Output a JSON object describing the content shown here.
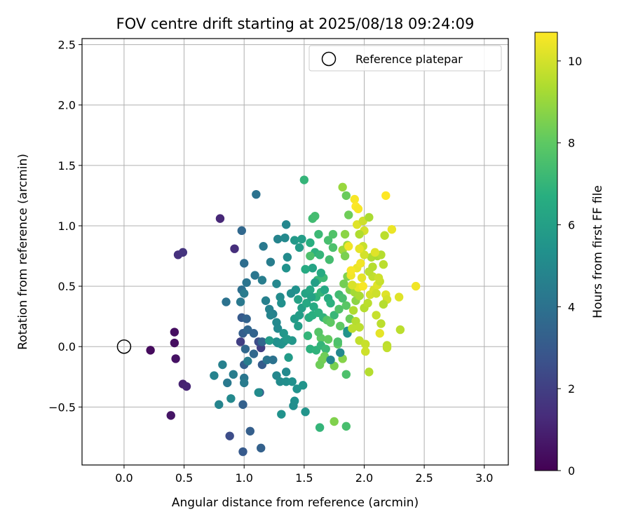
{
  "chart_data": {
    "type": "scatter",
    "title": "FOV centre drift starting at 2025/08/18 09:24:09",
    "xlabel": "Angular distance from reference (arcmin)",
    "ylabel": "Rotation from reference (arcmin)",
    "xlim": [
      -0.35,
      3.2
    ],
    "ylim": [
      -0.98,
      2.55
    ],
    "xticks": [
      0.0,
      0.5,
      1.0,
      1.5,
      2.0,
      2.5,
      3.0
    ],
    "xtick_labels": [
      "0.0",
      "0.5",
      "1.0",
      "1.5",
      "2.0",
      "2.5",
      "3.0"
    ],
    "yticks": [
      -0.5,
      0.0,
      0.5,
      1.0,
      1.5,
      2.0,
      2.5
    ],
    "ytick_labels": [
      "−0.5",
      "0.0",
      "0.5",
      "1.0",
      "1.5",
      "2.0",
      "2.5"
    ],
    "grid": true,
    "legend": {
      "location": "top-right",
      "entries": [
        "Reference platepar"
      ]
    },
    "reference_point": {
      "x": 0.0,
      "y": 0.0,
      "marker": "hollow circle"
    },
    "colorbar": {
      "label": "Hours from first FF file",
      "range": [
        0,
        10.7
      ],
      "ticks": [
        0,
        2,
        4,
        6,
        8,
        10
      ],
      "tick_labels": [
        "0",
        "2",
        "4",
        "6",
        "8",
        "10"
      ],
      "colormap": "viridis"
    },
    "points": [
      {
        "x": 0.22,
        "y": -0.03,
        "c": 0.3
      },
      {
        "x": 0.42,
        "y": 0.12,
        "c": 0.4
      },
      {
        "x": 0.42,
        "y": 0.03,
        "c": 0.4
      },
      {
        "x": 0.43,
        "y": -0.1,
        "c": 0.5
      },
      {
        "x": 0.39,
        "y": -0.57,
        "c": 0.6
      },
      {
        "x": 0.49,
        "y": -0.31,
        "c": 1.0
      },
      {
        "x": 0.52,
        "y": -0.33,
        "c": 1.1
      },
      {
        "x": 0.45,
        "y": 0.76,
        "c": 1.5
      },
      {
        "x": 0.49,
        "y": 0.78,
        "c": 1.6
      },
      {
        "x": 0.8,
        "y": 1.06,
        "c": 1.2
      },
      {
        "x": 0.92,
        "y": 0.81,
        "c": 1.4
      },
      {
        "x": 0.97,
        "y": 0.04,
        "c": 2.0
      },
      {
        "x": 1.14,
        "y": -0.01,
        "c": 2.0
      },
      {
        "x": 1.12,
        "y": 0.04,
        "c": 2.5
      },
      {
        "x": 0.88,
        "y": -0.74,
        "c": 2.5
      },
      {
        "x": 0.99,
        "y": -0.87,
        "c": 3.0
      },
      {
        "x": 1.05,
        "y": -0.7,
        "c": 3.2
      },
      {
        "x": 1.14,
        "y": -0.84,
        "c": 3.3
      },
      {
        "x": 1.13,
        "y": -0.38,
        "c": 3.0
      },
      {
        "x": 1.15,
        "y": -0.15,
        "c": 3.1
      },
      {
        "x": 0.99,
        "y": -0.48,
        "c": 3.3
      },
      {
        "x": 1.0,
        "y": -0.15,
        "c": 3.2
      },
      {
        "x": 0.98,
        "y": 0.24,
        "c": 3.0
      },
      {
        "x": 0.99,
        "y": 0.11,
        "c": 3.2
      },
      {
        "x": 1.02,
        "y": 0.23,
        "c": 3.4
      },
      {
        "x": 1.03,
        "y": 0.14,
        "c": 3.5
      },
      {
        "x": 1.01,
        "y": -0.02,
        "c": 3.6
      },
      {
        "x": 1.08,
        "y": 0.11,
        "c": 3.4
      },
      {
        "x": 1.08,
        "y": -0.06,
        "c": 3.6
      },
      {
        "x": 1.15,
        "y": 0.04,
        "c": 3.5
      },
      {
        "x": 1.1,
        "y": 1.26,
        "c": 4.0
      },
      {
        "x": 0.98,
        "y": 0.96,
        "c": 3.6
      },
      {
        "x": 1.0,
        "y": 0.69,
        "c": 3.8
      },
      {
        "x": 0.98,
        "y": 0.47,
        "c": 3.9
      },
      {
        "x": 1.02,
        "y": 0.53,
        "c": 4.1
      },
      {
        "x": 1.09,
        "y": 0.59,
        "c": 4.2
      },
      {
        "x": 0.85,
        "y": 0.37,
        "c": 4.0
      },
      {
        "x": 0.97,
        "y": 0.37,
        "c": 4.3
      },
      {
        "x": 1.0,
        "y": 0.44,
        "c": 4.4
      },
      {
        "x": 1.16,
        "y": 0.83,
        "c": 4.3
      },
      {
        "x": 1.15,
        "y": 0.55,
        "c": 4.5
      },
      {
        "x": 1.22,
        "y": 0.7,
        "c": 4.5
      },
      {
        "x": 1.18,
        "y": 0.38,
        "c": 4.6
      },
      {
        "x": 1.21,
        "y": 0.31,
        "c": 4.7
      },
      {
        "x": 1.24,
        "y": 0.27,
        "c": 4.6
      },
      {
        "x": 1.22,
        "y": 0.26,
        "c": 4.8
      },
      {
        "x": 1.27,
        "y": 0.52,
        "c": 4.9
      },
      {
        "x": 1.27,
        "y": 0.2,
        "c": 5.0
      },
      {
        "x": 1.28,
        "y": 0.89,
        "c": 4.8
      },
      {
        "x": 1.35,
        "y": 1.01,
        "c": 4.9
      },
      {
        "x": 1.34,
        "y": 0.9,
        "c": 5.0
      },
      {
        "x": 1.36,
        "y": 0.74,
        "c": 5.1
      },
      {
        "x": 1.35,
        "y": 0.65,
        "c": 5.4
      },
      {
        "x": 1.42,
        "y": 0.88,
        "c": 5.7
      },
      {
        "x": 1.46,
        "y": 0.82,
        "c": 5.8
      },
      {
        "x": 1.48,
        "y": 0.89,
        "c": 5.9
      },
      {
        "x": 1.43,
        "y": 0.47,
        "c": 5.4
      },
      {
        "x": 1.39,
        "y": 0.44,
        "c": 5.2
      },
      {
        "x": 1.3,
        "y": 0.41,
        "c": 5.1
      },
      {
        "x": 1.31,
        "y": 0.36,
        "c": 5.3
      },
      {
        "x": 1.28,
        "y": 0.15,
        "c": 5.0
      },
      {
        "x": 1.27,
        "y": 0.04,
        "c": 5.2
      },
      {
        "x": 1.28,
        "y": 0.03,
        "c": 5.3
      },
      {
        "x": 1.31,
        "y": 0.02,
        "c": 5.4
      },
      {
        "x": 1.33,
        "y": 0.04,
        "c": 5.5
      },
      {
        "x": 1.33,
        "y": 0.11,
        "c": 5.6
      },
      {
        "x": 1.4,
        "y": 0.05,
        "c": 5.6
      },
      {
        "x": 1.21,
        "y": 0.05,
        "c": 5.8
      },
      {
        "x": 1.24,
        "y": -0.11,
        "c": 4.0
      },
      {
        "x": 1.19,
        "y": -0.11,
        "c": 4.1
      },
      {
        "x": 1.03,
        "y": -0.12,
        "c": 4.5
      },
      {
        "x": 1.0,
        "y": -0.26,
        "c": 4.2
      },
      {
        "x": 1.0,
        "y": -0.3,
        "c": 4.4
      },
      {
        "x": 0.91,
        "y": -0.23,
        "c": 4.5
      },
      {
        "x": 0.86,
        "y": -0.3,
        "c": 4.3
      },
      {
        "x": 0.82,
        "y": -0.15,
        "c": 4.6
      },
      {
        "x": 0.75,
        "y": -0.24,
        "c": 4.7
      },
      {
        "x": 0.79,
        "y": -0.48,
        "c": 4.8
      },
      {
        "x": 0.89,
        "y": -0.43,
        "c": 5.0
      },
      {
        "x": 1.12,
        "y": -0.38,
        "c": 5.1
      },
      {
        "x": 1.27,
        "y": -0.24,
        "c": 4.9
      },
      {
        "x": 1.3,
        "y": -0.29,
        "c": 5.1
      },
      {
        "x": 1.35,
        "y": -0.21,
        "c": 5.0
      },
      {
        "x": 1.35,
        "y": -0.29,
        "c": 5.2
      },
      {
        "x": 1.4,
        "y": -0.29,
        "c": 5.3
      },
      {
        "x": 1.44,
        "y": -0.35,
        "c": 5.4
      },
      {
        "x": 1.49,
        "y": -0.32,
        "c": 5.5
      },
      {
        "x": 1.42,
        "y": -0.45,
        "c": 5.3
      },
      {
        "x": 1.41,
        "y": -0.49,
        "c": 5.2
      },
      {
        "x": 1.31,
        "y": -0.56,
        "c": 5.4
      },
      {
        "x": 1.51,
        "y": -0.54,
        "c": 5.5
      },
      {
        "x": 1.36,
        "y": 0.06,
        "c": 5.7
      },
      {
        "x": 1.37,
        "y": -0.09,
        "c": 5.8
      },
      {
        "x": 1.45,
        "y": 0.17,
        "c": 5.9
      },
      {
        "x": 1.42,
        "y": 0.23,
        "c": 5.8
      },
      {
        "x": 1.46,
        "y": 0.26,
        "c": 5.9
      },
      {
        "x": 1.48,
        "y": 0.32,
        "c": 6.0
      },
      {
        "x": 1.45,
        "y": 0.39,
        "c": 6.1
      },
      {
        "x": 1.51,
        "y": 0.44,
        "c": 6.2
      },
      {
        "x": 1.55,
        "y": 0.47,
        "c": 6.3
      },
      {
        "x": 1.52,
        "y": 0.36,
        "c": 6.4
      },
      {
        "x": 1.58,
        "y": 0.33,
        "c": 6.5
      },
      {
        "x": 1.54,
        "y": 0.24,
        "c": 6.6
      },
      {
        "x": 1.57,
        "y": 0.26,
        "c": 6.7
      },
      {
        "x": 1.62,
        "y": 0.28,
        "c": 6.8
      },
      {
        "x": 1.66,
        "y": 0.24,
        "c": 6.9
      },
      {
        "x": 1.6,
        "y": 0.41,
        "c": 6.9
      },
      {
        "x": 1.64,
        "y": 0.45,
        "c": 7.0
      },
      {
        "x": 1.61,
        "y": 0.55,
        "c": 7.1
      },
      {
        "x": 1.66,
        "y": 0.57,
        "c": 7.2
      },
      {
        "x": 1.64,
        "y": 0.61,
        "c": 6.5
      },
      {
        "x": 1.57,
        "y": 0.65,
        "c": 6.2
      },
      {
        "x": 1.51,
        "y": 0.64,
        "c": 6.5
      },
      {
        "x": 1.55,
        "y": 0.86,
        "c": 6.7
      },
      {
        "x": 1.59,
        "y": 0.78,
        "c": 6.8
      },
      {
        "x": 1.63,
        "y": 0.76,
        "c": 7.0
      },
      {
        "x": 1.62,
        "y": 0.93,
        "c": 7.2
      },
      {
        "x": 1.71,
        "y": 0.72,
        "c": 7.4
      },
      {
        "x": 1.7,
        "y": 0.88,
        "c": 7.5
      },
      {
        "x": 1.74,
        "y": 0.82,
        "c": 7.6
      },
      {
        "x": 1.74,
        "y": 0.93,
        "c": 7.7
      },
      {
        "x": 1.57,
        "y": 1.06,
        "c": 7.3
      },
      {
        "x": 1.59,
        "y": 1.08,
        "c": 7.4
      },
      {
        "x": 1.5,
        "y": 1.38,
        "c": 7.0
      },
      {
        "x": 1.55,
        "y": 0.75,
        "c": 7.6
      },
      {
        "x": 1.59,
        "y": 0.53,
        "c": 6.0
      },
      {
        "x": 1.56,
        "y": 0.41,
        "c": 6.1
      },
      {
        "x": 1.67,
        "y": 0.47,
        "c": 6.4
      },
      {
        "x": 1.7,
        "y": 0.4,
        "c": 6.6
      },
      {
        "x": 1.72,
        "y": 0.36,
        "c": 6.8
      },
      {
        "x": 1.75,
        "y": 0.26,
        "c": 7.1
      },
      {
        "x": 1.79,
        "y": 0.43,
        "c": 7.3
      },
      {
        "x": 1.82,
        "y": 0.4,
        "c": 7.5
      },
      {
        "x": 1.79,
        "y": 0.31,
        "c": 7.7
      },
      {
        "x": 1.85,
        "y": 0.34,
        "c": 7.9
      },
      {
        "x": 1.69,
        "y": 0.22,
        "c": 7.8
      },
      {
        "x": 1.72,
        "y": 0.2,
        "c": 8.0
      },
      {
        "x": 1.8,
        "y": 0.17,
        "c": 8.0
      },
      {
        "x": 1.88,
        "y": 0.23,
        "c": 8.2
      },
      {
        "x": 1.86,
        "y": 0.13,
        "c": 5.4
      },
      {
        "x": 1.86,
        "y": 0.11,
        "c": 5.5
      },
      {
        "x": 1.64,
        "y": 0.07,
        "c": 8.0
      },
      {
        "x": 1.7,
        "y": 0.06,
        "c": 8.1
      },
      {
        "x": 1.62,
        "y": 0.12,
        "c": 7.8
      },
      {
        "x": 1.53,
        "y": 0.09,
        "c": 7.0
      },
      {
        "x": 1.55,
        "y": -0.02,
        "c": 6.8
      },
      {
        "x": 1.6,
        "y": -0.03,
        "c": 6.9
      },
      {
        "x": 1.64,
        "y": 0.01,
        "c": 7.0
      },
      {
        "x": 1.68,
        "y": -0.02,
        "c": 7.2
      },
      {
        "x": 1.78,
        "y": 0.02,
        "c": 8.0
      },
      {
        "x": 1.78,
        "y": 0.04,
        "c": 7.6
      },
      {
        "x": 1.67,
        "y": -0.08,
        "c": 8.3
      },
      {
        "x": 1.65,
        "y": -0.11,
        "c": 8.4
      },
      {
        "x": 1.63,
        "y": -0.15,
        "c": 8.3
      },
      {
        "x": 1.75,
        "y": -0.16,
        "c": 8.5
      },
      {
        "x": 1.82,
        "y": -0.1,
        "c": 8.7
      },
      {
        "x": 1.72,
        "y": -0.11,
        "c": 4.9
      },
      {
        "x": 1.8,
        "y": -0.05,
        "c": 5.0
      },
      {
        "x": 1.63,
        "y": -0.67,
        "c": 7.0
      },
      {
        "x": 1.75,
        "y": -0.62,
        "c": 8.6
      },
      {
        "x": 1.85,
        "y": -0.66,
        "c": 7.5
      },
      {
        "x": 1.85,
        "y": -0.23,
        "c": 7.6
      },
      {
        "x": 1.82,
        "y": 1.32,
        "c": 9.0
      },
      {
        "x": 1.85,
        "y": 1.25,
        "c": 8.2
      },
      {
        "x": 1.87,
        "y": 1.09,
        "c": 8.3
      },
      {
        "x": 1.84,
        "y": 0.93,
        "c": 8.8
      },
      {
        "x": 1.86,
        "y": 0.84,
        "c": 9.0
      },
      {
        "x": 1.82,
        "y": 0.8,
        "c": 9.1
      },
      {
        "x": 1.84,
        "y": 0.75,
        "c": 8.5
      },
      {
        "x": 1.86,
        "y": 0.58,
        "c": 8.6
      },
      {
        "x": 1.83,
        "y": 0.52,
        "c": 8.4
      },
      {
        "x": 1.88,
        "y": 0.47,
        "c": 8.7
      },
      {
        "x": 1.91,
        "y": 0.5,
        "c": 8.9
      },
      {
        "x": 1.92,
        "y": 0.45,
        "c": 9.2
      },
      {
        "x": 1.93,
        "y": 0.38,
        "c": 8.8
      },
      {
        "x": 1.96,
        "y": 0.42,
        "c": 9.3
      },
      {
        "x": 1.91,
        "y": 0.3,
        "c": 9.4
      },
      {
        "x": 1.93,
        "y": 0.21,
        "c": 9.5
      },
      {
        "x": 1.96,
        "y": 0.16,
        "c": 9.6
      },
      {
        "x": 1.9,
        "y": 0.15,
        "c": 9.6
      },
      {
        "x": 1.96,
        "y": 0.05,
        "c": 9.7
      },
      {
        "x": 2.01,
        "y": 0.02,
        "c": 9.8
      },
      {
        "x": 2.01,
        "y": -0.04,
        "c": 9.9
      },
      {
        "x": 2.04,
        "y": -0.21,
        "c": 9.5
      },
      {
        "x": 2.0,
        "y": 0.32,
        "c": 9.5
      },
      {
        "x": 2.03,
        "y": 0.36,
        "c": 9.6
      },
      {
        "x": 2.05,
        "y": 0.43,
        "c": 10.0
      },
      {
        "x": 2.08,
        "y": 0.47,
        "c": 10.1
      },
      {
        "x": 2.11,
        "y": 0.51,
        "c": 10.2
      },
      {
        "x": 2.1,
        "y": 0.44,
        "c": 9.9
      },
      {
        "x": 2.13,
        "y": 0.54,
        "c": 9.8
      },
      {
        "x": 2.07,
        "y": 0.58,
        "c": 9.7
      },
      {
        "x": 2.04,
        "y": 0.62,
        "c": 9.6
      },
      {
        "x": 2.07,
        "y": 0.66,
        "c": 9.5
      },
      {
        "x": 2.06,
        "y": 0.74,
        "c": 9.4
      },
      {
        "x": 2.11,
        "y": 0.75,
        "c": 9.3
      },
      {
        "x": 2.14,
        "y": 0.76,
        "c": 9.5
      },
      {
        "x": 2.16,
        "y": 0.68,
        "c": 9.6
      },
      {
        "x": 2.09,
        "y": 0.78,
        "c": 10.2
      },
      {
        "x": 2.0,
        "y": 0.76,
        "c": 10.0
      },
      {
        "x": 1.99,
        "y": 0.83,
        "c": 9.8
      },
      {
        "x": 1.96,
        "y": 0.81,
        "c": 10.3
      },
      {
        "x": 1.94,
        "y": 0.65,
        "c": 10.4
      },
      {
        "x": 1.97,
        "y": 0.69,
        "c": 10.5
      },
      {
        "x": 1.98,
        "y": 0.57,
        "c": 10.3
      },
      {
        "x": 1.95,
        "y": 0.49,
        "c": 10.4
      },
      {
        "x": 1.99,
        "y": 0.5,
        "c": 10.6
      },
      {
        "x": 1.89,
        "y": 0.59,
        "c": 10.5
      },
      {
        "x": 1.89,
        "y": 0.63,
        "c": 10.6
      },
      {
        "x": 1.9,
        "y": 0.51,
        "c": 10.1
      },
      {
        "x": 1.92,
        "y": 1.22,
        "c": 10.6
      },
      {
        "x": 1.93,
        "y": 1.16,
        "c": 10.7
      },
      {
        "x": 1.95,
        "y": 1.14,
        "c": 10.6
      },
      {
        "x": 1.94,
        "y": 1.01,
        "c": 10.2
      },
      {
        "x": 1.99,
        "y": 1.04,
        "c": 9.9
      },
      {
        "x": 2.0,
        "y": 0.96,
        "c": 10.0
      },
      {
        "x": 1.96,
        "y": 0.93,
        "c": 9.4
      },
      {
        "x": 1.87,
        "y": 0.83,
        "c": 10.5
      },
      {
        "x": 2.04,
        "y": 1.07,
        "c": 9.3
      },
      {
        "x": 2.18,
        "y": 1.25,
        "c": 10.7
      },
      {
        "x": 2.17,
        "y": 0.92,
        "c": 9.6
      },
      {
        "x": 2.23,
        "y": 0.97,
        "c": 10.4
      },
      {
        "x": 2.18,
        "y": 0.43,
        "c": 10.2
      },
      {
        "x": 2.19,
        "y": 0.39,
        "c": 10.0
      },
      {
        "x": 2.16,
        "y": 0.35,
        "c": 9.5
      },
      {
        "x": 2.1,
        "y": 0.26,
        "c": 9.8
      },
      {
        "x": 2.14,
        "y": 0.19,
        "c": 9.6
      },
      {
        "x": 2.13,
        "y": 0.11,
        "c": 10.3
      },
      {
        "x": 2.19,
        "y": 0.01,
        "c": 9.6
      },
      {
        "x": 2.19,
        "y": -0.01,
        "c": 9.7
      },
      {
        "x": 2.29,
        "y": 0.41,
        "c": 10.2
      },
      {
        "x": 2.3,
        "y": 0.14,
        "c": 9.6
      },
      {
        "x": 2.43,
        "y": 0.5,
        "c": 10.5
      },
      {
        "x": 2.12,
        "y": 0.57,
        "c": 9.9
      }
    ]
  }
}
